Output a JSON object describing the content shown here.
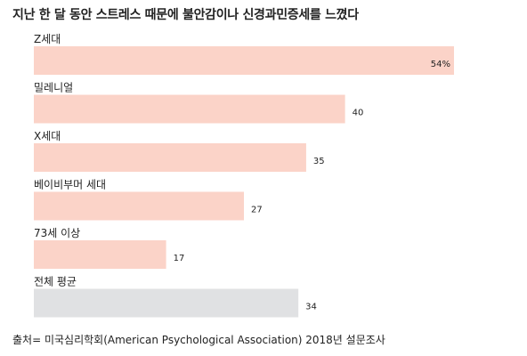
{
  "title": "지난 한 달 동안 스트레스 때문에 불안감이나 신경과민증세를 느꼈다",
  "source": "출처= 미국심리학회(American Psychological Association) 2018년 설문조사",
  "colors": {
    "bar": "#fbd3c8",
    "average_bar": "#e0e1e3",
    "text": "#222222"
  },
  "chart_data": {
    "type": "bar",
    "orientation": "horizontal",
    "title": "지난 한 달 동안 스트레스 때문에 불안감이나 신경과민증세를 느꼈다",
    "categories": [
      "Z세대",
      "밀레니얼",
      "X세대",
      "베이비부머 세대",
      "73세 이상",
      "전체 평균"
    ],
    "values": [
      54,
      40,
      35,
      27,
      17,
      34
    ],
    "value_labels": [
      "54%",
      "40",
      "35",
      "27",
      "17",
      "34"
    ],
    "unit": "%",
    "xlim": [
      0,
      54
    ],
    "grid": false,
    "legend": "none",
    "highlight_category": "전체 평균"
  }
}
